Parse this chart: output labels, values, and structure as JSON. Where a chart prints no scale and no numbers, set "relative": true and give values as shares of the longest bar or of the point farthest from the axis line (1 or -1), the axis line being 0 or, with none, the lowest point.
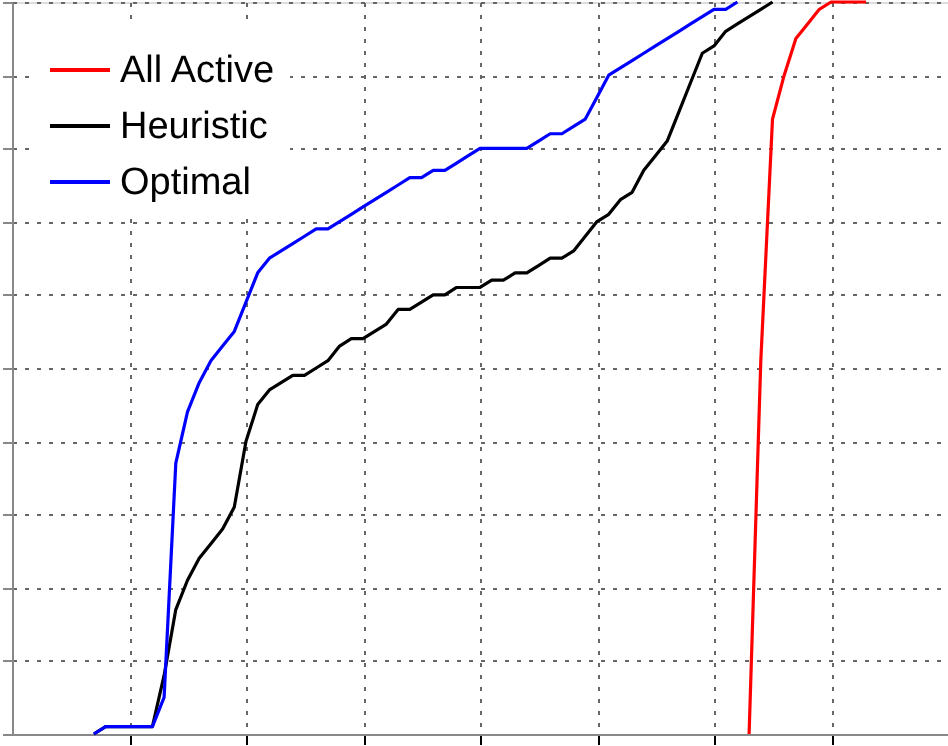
{
  "chart_data": {
    "type": "line",
    "relative": true,
    "tick_labels": false,
    "grid": true,
    "legend": "top left",
    "line_style": "solid",
    "marker": "none",
    "categories": [
      null,
      null,
      null,
      null,
      null,
      null,
      null,
      null,
      null,
      null,
      null,
      null,
      null,
      null,
      null,
      null,
      null,
      null,
      null,
      null,
      null,
      null,
      null,
      null,
      null,
      null,
      null,
      null,
      null,
      null,
      null,
      null,
      null,
      null,
      null,
      null,
      null,
      null,
      null,
      null,
      null,
      null,
      null,
      null,
      null,
      null,
      null,
      null,
      null,
      null,
      null,
      null,
      null,
      null,
      null,
      null,
      null,
      null,
      null,
      null,
      null,
      null,
      null,
      null,
      null,
      null,
      null,
      null,
      null,
      null,
      null,
      null,
      null,
      null,
      null,
      null,
      null,
      null,
      null,
      null,
      null
    ],
    "series": [
      {
        "name": "All Active",
        "color": "#ff0000",
        "values": [
          null,
          null,
          null,
          null,
          null,
          null,
          null,
          null,
          null,
          null,
          null,
          null,
          null,
          null,
          null,
          null,
          null,
          null,
          null,
          null,
          null,
          null,
          null,
          null,
          null,
          null,
          null,
          null,
          null,
          null,
          null,
          null,
          null,
          null,
          null,
          null,
          null,
          null,
          null,
          null,
          null,
          null,
          null,
          null,
          null,
          null,
          null,
          null,
          null,
          null,
          null,
          null,
          null,
          null,
          null,
          null,
          null,
          null,
          null,
          null,
          null,
          null,
          null,
          0,
          0.51,
          0.84,
          0.9,
          0.95,
          0.97,
          0.99,
          1.0,
          1.0,
          1.0,
          1.0,
          null,
          null,
          null,
          null,
          null,
          null,
          null
        ]
      },
      {
        "name": "Heuristic",
        "color": "#000000",
        "values": [
          null,
          null,
          null,
          null,
          null,
          null,
          null,
          0,
          0.01,
          0.01,
          0.01,
          0.01,
          0.01,
          0.08,
          0.17,
          0.21,
          0.24,
          0.26,
          0.28,
          0.31,
          0.4,
          0.45,
          0.47,
          0.48,
          0.49,
          0.49,
          0.5,
          0.51,
          0.53,
          0.54,
          0.54,
          0.55,
          0.56,
          0.58,
          0.58,
          0.59,
          0.6,
          0.6,
          0.61,
          0.61,
          0.61,
          0.62,
          0.62,
          0.63,
          0.63,
          0.64,
          0.65,
          0.65,
          0.66,
          0.68,
          0.7,
          0.71,
          0.73,
          0.74,
          0.77,
          0.79,
          0.81,
          0.85,
          0.89,
          0.93,
          0.94,
          0.96,
          0.97,
          0.98,
          0.99,
          1.0,
          null,
          null,
          null,
          null,
          null,
          null,
          null,
          null,
          null,
          null,
          null,
          null,
          null,
          null,
          null
        ]
      },
      {
        "name": "Optimal",
        "color": "#0000ff",
        "values": [
          null,
          null,
          null,
          null,
          null,
          null,
          null,
          0,
          0.01,
          0.01,
          0.01,
          0.01,
          0.01,
          0.05,
          0.37,
          0.44,
          0.48,
          0.51,
          0.53,
          0.55,
          0.59,
          0.63,
          0.65,
          0.66,
          0.67,
          0.68,
          0.69,
          0.69,
          0.7,
          0.71,
          0.72,
          0.73,
          0.74,
          0.75,
          0.76,
          0.76,
          0.77,
          0.77,
          0.78,
          0.79,
          0.8,
          0.8,
          0.8,
          0.8,
          0.8,
          0.81,
          0.82,
          0.82,
          0.83,
          0.84,
          0.87,
          0.9,
          0.91,
          0.92,
          0.93,
          0.94,
          0.95,
          0.96,
          0.97,
          0.98,
          0.99,
          0.99,
          1.0,
          null,
          null,
          null,
          null,
          null,
          null,
          null,
          null,
          null,
          null,
          null,
          null,
          null,
          null,
          null,
          null,
          null,
          null
        ]
      }
    ]
  }
}
